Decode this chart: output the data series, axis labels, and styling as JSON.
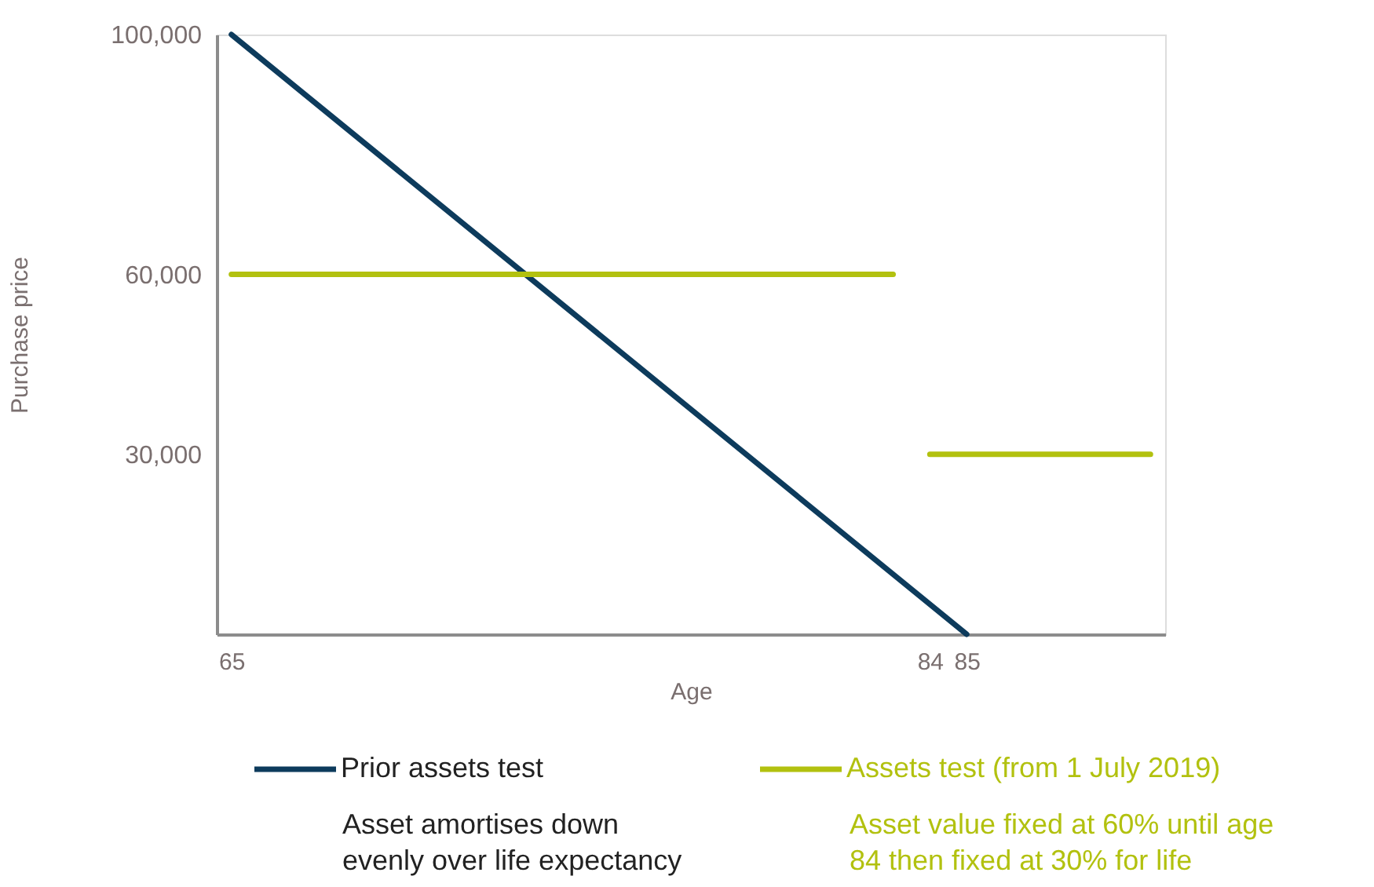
{
  "chart_data": {
    "type": "line",
    "xlabel": "Age",
    "ylabel": "Purchase price",
    "xlim": [
      64.6,
      90.4
    ],
    "xticks": [
      65,
      84,
      85
    ],
    "ylim": [
      0,
      100000
    ],
    "yticks": [
      {
        "value": 30000,
        "label": "30,000"
      },
      {
        "value": 60000,
        "label": "60,000"
      },
      {
        "value": 100000,
        "label": "100,000"
      }
    ],
    "series": [
      {
        "name": "Prior assets test",
        "color": "#0d3b5c",
        "x": [
          65,
          85
        ],
        "values": [
          100000,
          0
        ]
      },
      {
        "name": "Assets test (from 1 July 2019)",
        "color": "#b2c10f",
        "x": [
          65,
          83,
          83.5,
          84,
          90
        ],
        "values": [
          60000,
          60000,
          null,
          30000,
          30000
        ]
      }
    ],
    "annotations": [
      "Asset amortises down\nevenly over life expectancy",
      "Asset value fixed at 60% until  age\n84 then fixed at 30% for life"
    ],
    "legend": "bottom",
    "grid": false,
    "marker": "none",
    "line_style": "solid"
  }
}
